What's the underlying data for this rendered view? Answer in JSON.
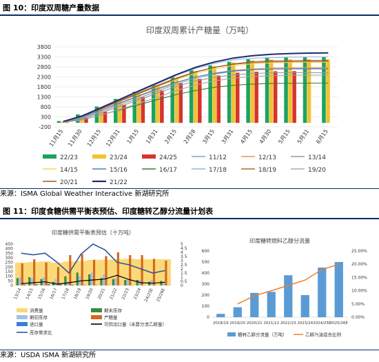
{
  "fig10": {
    "caption": "图 10：印度双周糖产量数据",
    "source": "来源：ISMA Global Weather Interactive 新湖研究所",
    "chart_data": {
      "type": "bar",
      "title": "印度双周累计产糖量（万吨）",
      "categories": [
        "11月15",
        "11月30",
        "12月15",
        "12月31",
        "1月15",
        "1月31",
        "2月15",
        "2月28",
        "3月15",
        "3月31",
        "4月15",
        "4月30",
        "5月15",
        "5月31",
        "6月15"
      ],
      "ylim": [
        -200,
        3800
      ],
      "yticks": [
        -200,
        300,
        800,
        1300,
        1800,
        2300,
        2800,
        3300,
        3800
      ],
      "bar_series": [
        {
          "name": "22/23",
          "color": "#1ea25c",
          "values": [
            90,
            420,
            820,
            1200,
            1560,
            1930,
            2290,
            2630,
            2870,
            3050,
            3180,
            3250,
            3270,
            3275,
            3280
          ]
        },
        {
          "name": "23/24",
          "color": "#f2c230",
          "values": [
            60,
            370,
            760,
            1150,
            1520,
            1890,
            2250,
            2590,
            2830,
            3020,
            3130,
            3170,
            3175,
            3180,
            3180
          ]
        },
        {
          "name": "24/25",
          "color": "#d6342c",
          "values": [
            20,
            260,
            560,
            910,
            1290,
            1620,
            1980,
            2200,
            2370,
            2510,
            2560,
            2580,
            2585,
            null,
            null
          ]
        }
      ],
      "line_series": [
        {
          "name": "11/12",
          "color": "#7aa2d6",
          "values": [
            50,
            250,
            560,
            900,
            1240,
            1600,
            1940,
            2230,
            2440,
            2580,
            2650,
            2690,
            2710,
            2720,
            2720
          ]
        },
        {
          "name": "12/13",
          "color": "#e8964a",
          "values": [
            60,
            290,
            620,
            970,
            1330,
            1680,
            2010,
            2300,
            2490,
            2630,
            2700,
            2740,
            2750,
            2760,
            2760
          ]
        },
        {
          "name": "13/14",
          "color": "#9a9a9a",
          "values": [
            40,
            220,
            500,
            820,
            1150,
            1500,
            1830,
            2100,
            2280,
            2400,
            2470,
            2500,
            2510,
            2510,
            2510
          ]
        },
        {
          "name": "14/15",
          "color": "#f5d64a",
          "values": [
            70,
            330,
            700,
            1080,
            1450,
            1820,
            2170,
            2480,
            2700,
            2870,
            2950,
            3000,
            3020,
            3030,
            3030
          ]
        },
        {
          "name": "15/16",
          "color": "#4a7fc0",
          "values": [
            60,
            300,
            640,
            1000,
            1360,
            1720,
            2030,
            2300,
            2480,
            2600,
            2660,
            2690,
            2700,
            2700,
            2700
          ]
        },
        {
          "name": "16/17",
          "color": "#3e7a3a",
          "values": [
            30,
            170,
            400,
            650,
            910,
            1170,
            1420,
            1620,
            1780,
            1880,
            1940,
            1970,
            1980,
            1990,
            1990
          ]
        },
        {
          "name": "17/18",
          "color": "#8bb8e0",
          "values": [
            80,
            360,
            750,
            1150,
            1560,
            1970,
            2380,
            2720,
            2980,
            3150,
            3230,
            3270,
            3290,
            3300,
            3300
          ]
        },
        {
          "name": "18/19",
          "color": "#b06a2a",
          "values": [
            70,
            350,
            730,
            1120,
            1510,
            1890,
            2250,
            2560,
            2780,
            2930,
            3010,
            3050,
            3060,
            3070,
            3070
          ]
        },
        {
          "name": "19/20",
          "color": "#a8a8a8",
          "values": [
            20,
            150,
            390,
            680,
            980,
            1290,
            1620,
            1900,
            2100,
            2240,
            2320,
            2360,
            2380,
            2390,
            2390
          ]
        },
        {
          "name": "20/21",
          "color": "#a0522d",
          "values": [
            60,
            330,
            700,
            1090,
            1470,
            1850,
            2220,
            2540,
            2780,
            2950,
            3060,
            3100,
            3110,
            3120,
            3120
          ]
        },
        {
          "name": "21/22",
          "color": "#1f2a6e",
          "values": [
            70,
            350,
            760,
            1180,
            1600,
            2010,
            2420,
            2780,
            3050,
            3240,
            3360,
            3430,
            3470,
            3490,
            3500
          ]
        }
      ]
    }
  },
  "fig11": {
    "caption": "图 11：印度食糖供需平衡表预估、印度糖转乙醇分流量计划表",
    "source": "来源：USDA ISMA 新湖研究所",
    "left_chart": {
      "type": "bar",
      "title": "印度糖供需平衡表预估（十万吨）",
      "categories": [
        "13/14",
        "14/15",
        "15/16",
        "16/17",
        "17/18",
        "18/19",
        "19/20",
        "20/21",
        "21/22",
        "22/23",
        "23/24",
        "24/25E",
        "25/26E"
      ],
      "ylim_left": [
        0,
        450
      ],
      "yticks_left": [
        0,
        50,
        100,
        150,
        200,
        250,
        300,
        350,
        400,
        450
      ],
      "ylim_right": [
        0,
        5
      ],
      "yticks_right": [
        "0",
        "0.5",
        "1",
        "1.5",
        "2",
        "2.5",
        "3",
        "3.5",
        "4",
        "4.5",
        "5"
      ],
      "series": [
        {
          "name": "消费量",
          "color": "#fbd978",
          "kind": "area",
          "values": [
            248,
            255,
            262,
            248,
            260,
            268,
            278,
            280,
            285,
            290,
            285,
            285,
            285
          ]
        },
        {
          "name": "期末库存",
          "color": "#3f8a3a",
          "kind": "bar",
          "values": [
            80,
            90,
            70,
            40,
            100,
            140,
            120,
            80,
            70,
            60,
            60,
            40,
            50
          ]
        },
        {
          "name": "期初库存",
          "color": "#9fc0e8",
          "kind": "bar",
          "values": [
            90,
            80,
            90,
            70,
            40,
            100,
            140,
            120,
            80,
            70,
            60,
            60,
            40
          ]
        },
        {
          "name": "产糖量",
          "color": "#d2691e",
          "kind": "bar",
          "values": [
            240,
            285,
            250,
            200,
            330,
            340,
            280,
            320,
            360,
            330,
            330,
            290,
            270
          ]
        },
        {
          "name": "进口量",
          "color": "#3b7ddd",
          "kind": "bar",
          "values": [
            10,
            12,
            15,
            20,
            8,
            5,
            3,
            2,
            2,
            2,
            2,
            2,
            2
          ]
        },
        {
          "name": "可供出口量（未算分流乙醇量）",
          "color": "#000000",
          "kind": "line",
          "values": [
            20,
            30,
            40,
            15,
            30,
            50,
            60,
            70,
            110,
            65,
            30,
            25,
            35
          ]
        },
        {
          "name": "库存需求比",
          "color": "#2f5597",
          "kind": "line",
          "axis": "right",
          "values": [
            3.9,
            3.7,
            3.9,
            2.8,
            1.5,
            3.8,
            5.0,
            4.3,
            2.8,
            2.5,
            2.0,
            1.5,
            1.8
          ]
        }
      ]
    },
    "right_chart": {
      "type": "bar",
      "title": "印度糖转燃料乙醇分流量",
      "categories": [
        "2018/19",
        "2019/20",
        "2020/21",
        "2021/22",
        "2022/23",
        "2023/24",
        "2024/25E",
        "2025/26E"
      ],
      "ylim_left": [
        0,
        600
      ],
      "yticks_left": [
        "0",
        "100",
        "200",
        "300",
        "400",
        "500",
        "600"
      ],
      "ylim_right": [
        0,
        0.25
      ],
      "yticks_right": [
        "0.00%",
        "5.00%",
        "10.00%",
        "15.00%",
        "20.00%",
        "25.00%"
      ],
      "series": [
        {
          "name": "糖转乙醇分流量（万吨）",
          "color": "#5b9bd5",
          "kind": "bar",
          "values": [
            30,
            90,
            220,
            230,
            380,
            200,
            450,
            500
          ]
        },
        {
          "name": "乙醇汽油混合比例",
          "color": "#ed7d31",
          "kind": "line",
          "axis": "right",
          "values": [
            null,
            0.05,
            0.081,
            0.1,
            0.12,
            0.14,
            0.18,
            0.2
          ]
        }
      ]
    }
  }
}
